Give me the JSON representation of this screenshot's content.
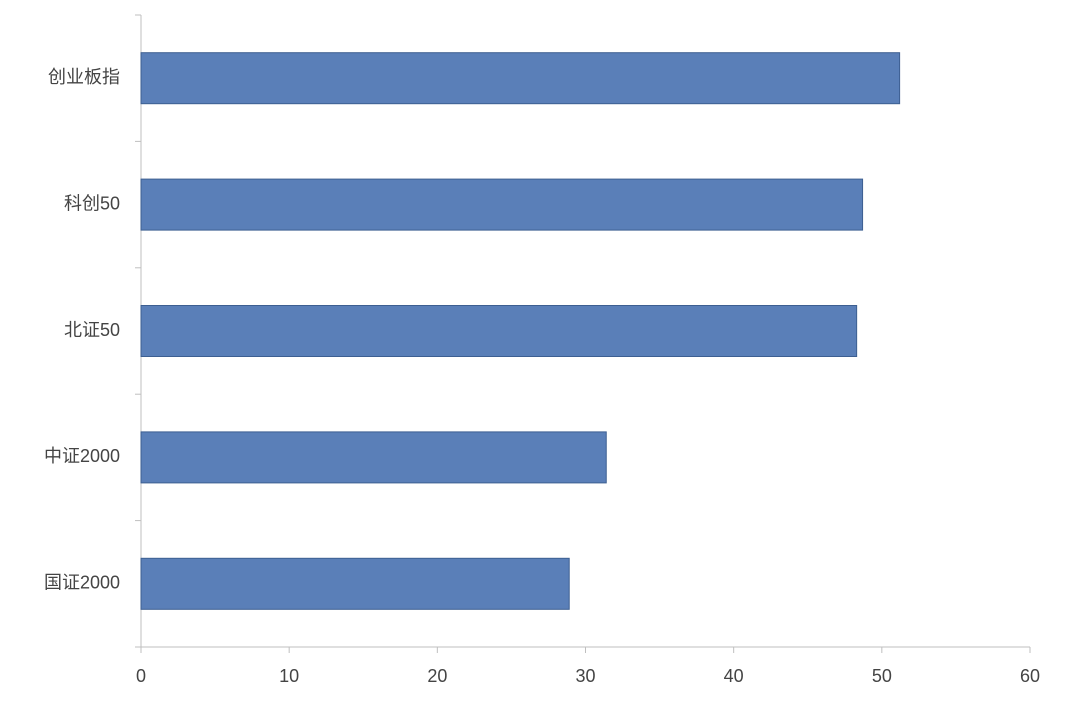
{
  "chart_data": {
    "type": "barh",
    "categories": [
      "创业板指",
      "科创50",
      "北证50",
      "中证2000",
      "国证2000"
    ],
    "values": [
      51.2,
      48.7,
      48.3,
      31.4,
      28.9
    ],
    "color": "#5a7fb8",
    "xlim": [
      0,
      60
    ],
    "xticks": [
      0,
      10,
      20,
      30,
      40,
      50,
      60
    ]
  }
}
